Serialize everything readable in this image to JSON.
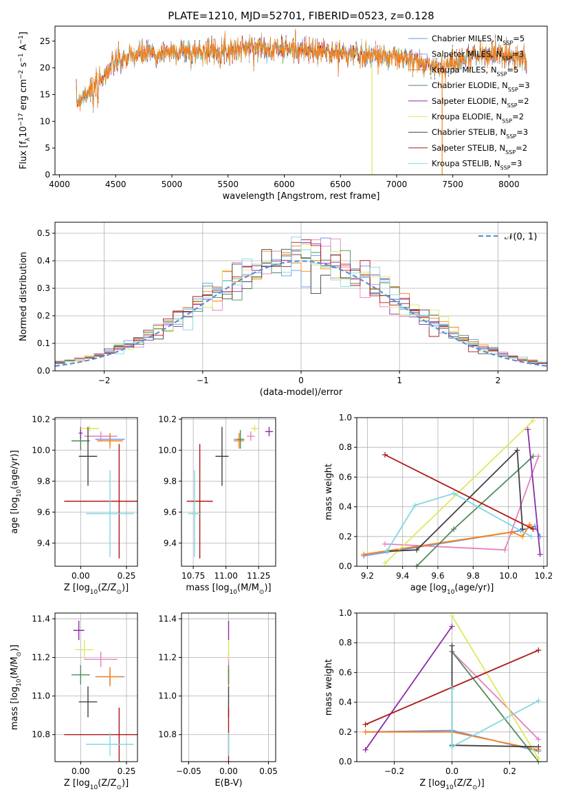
{
  "title": "PLATE=1210, MJD=52701, FIBERID=0523, z=0.128",
  "colors": [
    "#6495ed",
    "#e47fc0",
    "#ff7f0e",
    "#4f8a5a",
    "#8b2aa9",
    "#dfe85a",
    "#404040",
    "#b01515",
    "#7fd8e0"
  ],
  "legend": [
    [
      "Chabrier MILES, N",
      "SSP",
      "=5"
    ],
    [
      "Salpeter MILES, N",
      "SSP",
      "=3"
    ],
    [
      "Kroupa MILES, N",
      "SSP",
      "=5"
    ],
    [
      "Chabrier ELODIE, N",
      "SSP",
      "=3"
    ],
    [
      "Salpeter ELODIE, N",
      "SSP",
      "=2"
    ],
    [
      "Kroupa ELODIE, N",
      "SSP",
      "=2"
    ],
    [
      "Chabrier STELIB, N",
      "SSP",
      "=3"
    ],
    [
      "Salpeter STELIB, N",
      "SSP",
      "=2"
    ],
    [
      "Kroupa STELIB, N",
      "SSP",
      "=3"
    ]
  ],
  "chart_data": [
    {
      "id": "spectrum",
      "type": "line",
      "xlabel": "wavelength [Angstrom, rest frame]",
      "ylabel": [
        "Flux [f",
        "λ",
        "10",
        "−17",
        " erg cm",
        "−2",
        " s",
        "−1",
        " A",
        "−1",
        "]"
      ],
      "xlim": [
        3960,
        8340
      ],
      "ylim": [
        0,
        27.8
      ],
      "xticks": [
        4000,
        4500,
        5000,
        5500,
        6000,
        6500,
        7000,
        7500,
        8000
      ],
      "yticks": [
        0,
        5,
        10,
        15,
        20,
        25
      ],
      "data_range": [
        4150,
        8160
      ],
      "grid": false,
      "continuum_points": [
        [
          4150,
          13.5
        ],
        [
          4300,
          16.5
        ],
        [
          4500,
          21
        ],
        [
          4700,
          22.5
        ],
        [
          5000,
          23
        ],
        [
          5500,
          23.3
        ],
        [
          5800,
          24
        ],
        [
          6000,
          23.5
        ],
        [
          6500,
          22.8
        ],
        [
          7000,
          22
        ],
        [
          7200,
          21
        ],
        [
          7400,
          20
        ],
        [
          7500,
          21
        ],
        [
          7700,
          22.5
        ],
        [
          8000,
          22.5
        ],
        [
          8160,
          21.5
        ]
      ]
    },
    {
      "id": "residuals",
      "type": "step",
      "xlabel": "(data-model)/error",
      "ylabel": "Normed distribution",
      "xlim": [
        -2.5,
        2.5
      ],
      "ylim": [
        0,
        0.54
      ],
      "xticks": [
        -2,
        -1,
        0,
        1,
        2
      ],
      "yticks": [
        0.0,
        0.1,
        0.2,
        0.3,
        0.4,
        0.5
      ],
      "legend": "𝒩(0, 1)",
      "legend_position": "top-right",
      "grid": true,
      "bin_width": 0.1
    },
    {
      "id": "age-vs-Z",
      "type": "errorbar",
      "xlabel": [
        "Z [log",
        "10",
        "(Z/Z",
        "⊙",
        ")]"
      ],
      "ylabel": [
        "age  [log",
        "10",
        "(age/yr)]"
      ],
      "xlim": [
        -0.14,
        0.31
      ],
      "ylim": [
        9.25,
        10.21
      ],
      "xticks": [
        0.0,
        0.25
      ],
      "yticks": [
        9.4,
        9.6,
        9.8,
        10.0,
        10.2
      ],
      "grid": true,
      "points": [
        [
          0.16,
          10.07,
          0.08,
          0.04
        ],
        [
          0.11,
          10.09,
          0.09,
          0.03
        ],
        [
          0.16,
          10.06,
          0.07,
          0.05
        ],
        [
          0.0,
          10.06,
          0.05,
          0.06
        ],
        [
          0.0,
          10.11,
          0.01,
          0.04
        ],
        [
          0.05,
          10.14,
          0.05,
          0.02
        ],
        [
          0.04,
          9.96,
          0.05,
          0.19
        ],
        [
          0.21,
          9.67,
          0.3,
          0.37
        ],
        [
          0.16,
          9.59,
          0.13,
          0.28
        ]
      ]
    },
    {
      "id": "age-vs-mass",
      "type": "errorbar",
      "xlabel": [
        "mass [log",
        "10",
        "(M/M",
        "⊙",
        ")]"
      ],
      "ylabel": [],
      "xlim": [
        10.66,
        11.38
      ],
      "ylim": [
        9.25,
        10.21
      ],
      "xticks": [
        10.75,
        11.0,
        11.25
      ],
      "yticks": [
        9.4,
        9.6,
        9.8,
        10.0,
        10.2
      ],
      "grid": true,
      "points": [
        [
          11.1,
          10.07,
          0.04,
          0.04
        ],
        [
          11.19,
          10.09,
          0.03,
          0.03
        ],
        [
          11.1,
          10.06,
          0.04,
          0.05
        ],
        [
          11.11,
          10.07,
          0.03,
          0.06
        ],
        [
          11.33,
          10.12,
          0.03,
          0.03
        ],
        [
          11.22,
          10.14,
          0.03,
          0.02
        ],
        [
          10.97,
          9.96,
          0.05,
          0.19
        ],
        [
          10.8,
          9.67,
          0.1,
          0.37
        ],
        [
          10.76,
          9.59,
          0.05,
          0.28
        ]
      ]
    },
    {
      "id": "weight-vs-age",
      "type": "line",
      "xlabel": [
        "age  [log",
        "10",
        "(age/yr)]"
      ],
      "ylabel": "mass weight",
      "xlim": [
        9.14,
        10.22
      ],
      "ylim": [
        0,
        1.0
      ],
      "xticks": [
        9.2,
        9.4,
        9.6,
        9.8,
        10.0,
        10.2
      ],
      "yticks": [
        0.0,
        0.2,
        0.4,
        0.6,
        0.8,
        1.0
      ],
      "grid": true,
      "series": [
        {
          "x": [
            9.18,
            10.07,
            10.15,
            10.18
          ],
          "y": [
            0.07,
            0.24,
            0.27,
            0.2
          ]
        },
        {
          "x": [
            9.3,
            9.98,
            10.17
          ],
          "y": [
            0.15,
            0.11,
            0.74
          ]
        },
        {
          "x": [
            9.18,
            10.02,
            10.08,
            10.12,
            10.14
          ],
          "y": [
            0.08,
            0.23,
            0.2,
            0.28,
            0.25
          ]
        },
        {
          "x": [
            9.48,
            9.69,
            10.14
          ],
          "y": [
            0.0,
            0.25,
            0.74
          ]
        },
        {
          "x": [
            10.11,
            10.18
          ],
          "y": [
            0.92,
            0.08
          ]
        },
        {
          "x": [
            9.3,
            10.14
          ],
          "y": [
            0.02,
            0.98
          ]
        },
        {
          "x": [
            9.31,
            9.48,
            10.05,
            10.08
          ],
          "y": [
            0.1,
            0.11,
            0.78,
            0.25
          ]
        },
        {
          "x": [
            9.3,
            10.14
          ],
          "y": [
            0.75,
            0.25
          ]
        },
        {
          "x": [
            9.31,
            9.47,
            9.69,
            10.13
          ],
          "y": [
            0.1,
            0.41,
            0.49,
            0.2
          ]
        }
      ]
    },
    {
      "id": "mass-vs-Z",
      "type": "errorbar",
      "xlabel": [
        "Z [log",
        "10",
        "(Z/Z",
        "⊙",
        ")]"
      ],
      "ylabel": [
        "mass [log",
        "10",
        "(M/M",
        "⊙",
        ")]"
      ],
      "xlim": [
        -0.14,
        0.31
      ],
      "ylim": [
        10.66,
        11.43
      ],
      "xticks": [
        0.0,
        0.25
      ],
      "yticks": [
        10.8,
        11.0,
        11.2,
        11.4
      ],
      "grid": true,
      "points": [
        [
          0.16,
          11.1,
          0.08,
          0.04
        ],
        [
          0.11,
          11.19,
          0.09,
          0.04
        ],
        [
          0.16,
          11.1,
          0.07,
          0.05
        ],
        [
          0.0,
          11.11,
          0.05,
          0.05
        ],
        [
          -0.01,
          11.34,
          0.03,
          0.05
        ],
        [
          0.02,
          11.24,
          0.05,
          0.05
        ],
        [
          0.04,
          10.97,
          0.05,
          0.08
        ],
        [
          0.21,
          10.8,
          0.3,
          0.14
        ],
        [
          0.16,
          10.75,
          0.13,
          0.06
        ]
      ]
    },
    {
      "id": "mass-vs-ebv",
      "type": "errorbar",
      "xlabel": "E(B-V)",
      "ylabel": [],
      "xlim": [
        -0.059,
        0.059
      ],
      "ylim": [
        10.66,
        11.43
      ],
      "xticks": [
        -0.05,
        0.0,
        0.05
      ],
      "yticks": [
        10.8,
        11.0,
        11.2,
        11.4
      ],
      "grid": true,
      "points": [
        [
          0,
          11.1,
          0,
          0.04
        ],
        [
          0,
          11.19,
          0,
          0.04
        ],
        [
          0,
          11.1,
          0,
          0.05
        ],
        [
          0,
          11.11,
          0,
          0.05
        ],
        [
          0,
          11.34,
          0,
          0.05
        ],
        [
          0,
          11.24,
          0,
          0.05
        ],
        [
          0,
          10.97,
          0,
          0.08
        ],
        [
          0,
          10.8,
          0,
          0.14
        ],
        [
          0,
          10.75,
          0,
          0.06
        ]
      ]
    },
    {
      "id": "weight-vs-Z",
      "type": "line",
      "xlabel": [
        "Z [log",
        "10",
        "(Z/Z",
        "⊙",
        ")]"
      ],
      "ylabel": "mass weight",
      "xlim": [
        -0.33,
        0.33
      ],
      "ylim": [
        0,
        1.0
      ],
      "xticks": [
        -0.2,
        0.0,
        0.2
      ],
      "yticks": [
        0.0,
        0.2,
        0.4,
        0.6,
        0.8,
        1.0
      ],
      "grid": true,
      "series": [
        {
          "x": [
            -0.3,
            0.0,
            0.3
          ],
          "y": [
            0.2,
            0.21,
            0.07
          ]
        },
        {
          "x": [
            0.0,
            0.3
          ],
          "y": [
            0.74,
            0.15
          ]
        },
        {
          "x": [
            -0.3,
            0.0,
            0.3
          ],
          "y": [
            0.2,
            0.2,
            0.08
          ]
        },
        {
          "x": [
            0.0,
            0.3
          ],
          "y": [
            0.74,
            0.0
          ]
        },
        {
          "x": [
            -0.3,
            0.0
          ],
          "y": [
            0.08,
            0.91
          ]
        },
        {
          "x": [
            0.0,
            0.3
          ],
          "y": [
            0.98,
            0.02
          ]
        },
        {
          "x": [
            0.0,
            0.0,
            0.3
          ],
          "y": [
            0.78,
            0.11,
            0.1
          ]
        },
        {
          "x": [
            -0.3,
            0.3
          ],
          "y": [
            0.25,
            0.75
          ]
        },
        {
          "x": [
            0.0,
            0.0,
            0.3
          ],
          "y": [
            0.49,
            0.1,
            0.41
          ]
        }
      ]
    }
  ]
}
